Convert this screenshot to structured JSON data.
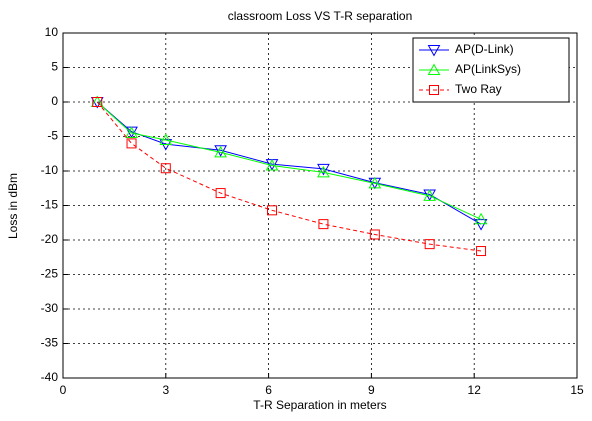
{
  "chart_data": {
    "type": "line",
    "title": "classroom Loss VS T-R separation",
    "xlabel": "T-R Separation in meters",
    "ylabel": "Loss in dBm",
    "x": [
      1,
      2,
      3,
      4.6,
      6.1,
      7.6,
      9.1,
      10.7,
      12.2
    ],
    "series": [
      {
        "name": "AP(D-Link)",
        "color": "#0000ff",
        "marker": "triangle-down",
        "dash": "solid",
        "values": [
          0,
          -4.3,
          -6.1,
          -7,
          -9,
          -9.7,
          -11.7,
          -13.4,
          -17.7
        ]
      },
      {
        "name": "AP(LinkSys)",
        "color": "#00ff00",
        "marker": "triangle-up",
        "dash": "solid",
        "values": [
          0,
          -4.5,
          -5.5,
          -7.3,
          -9.2,
          -10.2,
          -11.8,
          -13.6,
          -17
        ]
      },
      {
        "name": "Two Ray",
        "color": "#ff0000",
        "marker": "square",
        "dash": "dashed",
        "values": [
          0,
          -6,
          -9.6,
          -13.2,
          -15.7,
          -17.7,
          -19.2,
          -20.6,
          -21.6
        ]
      }
    ],
    "xlim": [
      0,
      15
    ],
    "xticks": [
      0,
      3,
      6,
      9,
      12,
      15
    ],
    "ylim": [
      -40,
      10
    ],
    "yticks": [
      -40,
      -35,
      -30,
      -25,
      -20,
      -15,
      -10,
      -5,
      0,
      5,
      10
    ],
    "grid": true,
    "legend": "top-right"
  }
}
